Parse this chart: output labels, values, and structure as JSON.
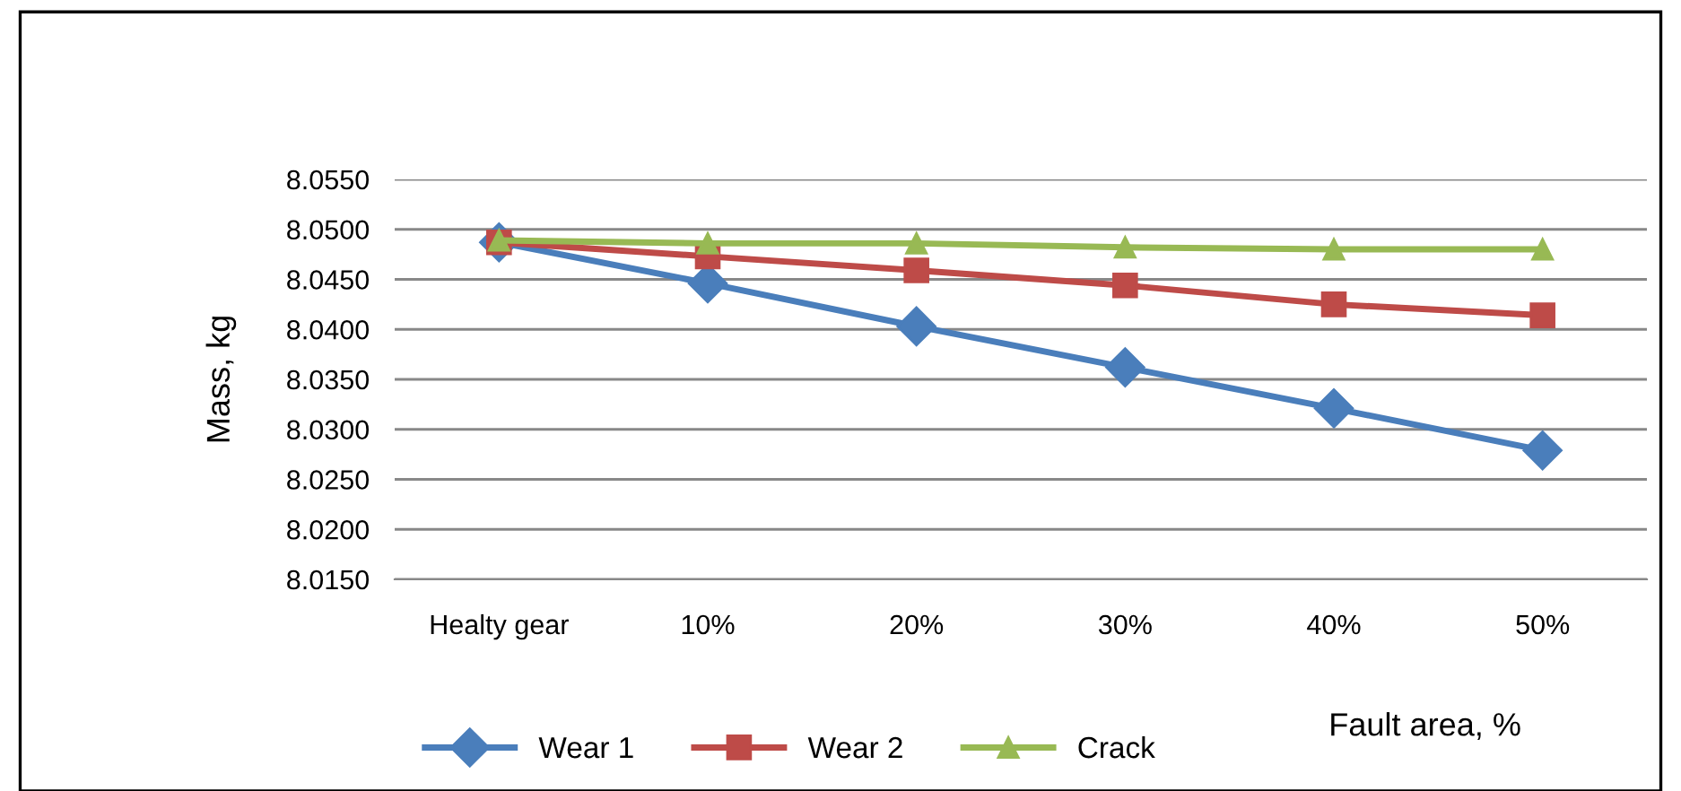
{
  "chart_data": {
    "type": "line",
    "xlabel": "Fault area, %",
    "ylabel": "Mass, kg",
    "categories": [
      "Healty gear",
      "10%",
      "20%",
      "30%",
      "40%",
      "50%"
    ],
    "series": [
      {
        "name": "Wear 1",
        "color": "#4a7ebb",
        "marker": "diamond",
        "values": [
          8.0487,
          8.0446,
          8.0403,
          8.0362,
          8.0321,
          8.0279
        ]
      },
      {
        "name": "Wear 2",
        "color": "#be4b48",
        "marker": "square",
        "values": [
          8.0487,
          8.0473,
          8.0459,
          8.0444,
          8.0425,
          8.0414
        ]
      },
      {
        "name": "Crack",
        "color": "#98b954",
        "marker": "triangle",
        "values": [
          8.0489,
          8.0486,
          8.0486,
          8.0482,
          8.048,
          8.048
        ]
      }
    ],
    "ylim": [
      8.015,
      8.055
    ],
    "yticks": [
      {
        "value": 8.015,
        "label": "8.0150"
      },
      {
        "value": 8.02,
        "label": "8.0200"
      },
      {
        "value": 8.025,
        "label": "8.0250"
      },
      {
        "value": 8.03,
        "label": "8.0300"
      },
      {
        "value": 8.035,
        "label": "8.0350"
      },
      {
        "value": 8.04,
        "label": "8.0400"
      },
      {
        "value": 8.045,
        "label": "8.0450"
      },
      {
        "value": 8.05,
        "label": "8.0500"
      },
      {
        "value": 8.055,
        "label": "8.0550"
      }
    ],
    "grid": "y",
    "legend": "bottom"
  }
}
